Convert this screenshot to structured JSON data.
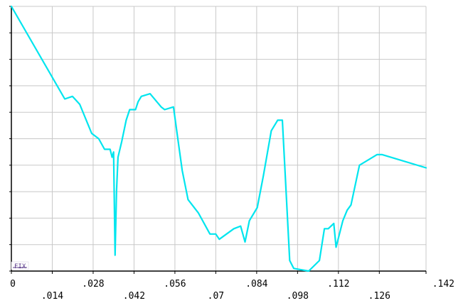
{
  "chart_data": {
    "type": "line",
    "title": "",
    "xlabel": "",
    "ylabel": "",
    "xlim": [
      0,
      0.142
    ],
    "ylim": [
      0,
      1
    ],
    "grid": true,
    "x_ticks": [
      0,
      0.014,
      0.028,
      0.042,
      0.056,
      0.07,
      0.084,
      0.098,
      0.112,
      0.126,
      0.142
    ],
    "x_tick_labels": [
      "0",
      ".014",
      ".028",
      ".042",
      ".056",
      ".07",
      ".084",
      ".098",
      ".112",
      ".126",
      ".142"
    ],
    "y_gridlines": 10,
    "y_tick_labels": [],
    "legend_label": "FIX",
    "colors": {
      "line": "#00e5ee",
      "grid": "#c8c8c8",
      "axis": "#000000",
      "legend_mark": "#5a3a8a"
    },
    "series": [
      {
        "x": [
          0,
          0.0183,
          0.0209,
          0.0234,
          0.0275,
          0.0299,
          0.0319,
          0.0338,
          0.0345,
          0.035,
          0.0355,
          0.036,
          0.0365,
          0.0378,
          0.0393,
          0.0405,
          0.0425,
          0.0434,
          0.0445,
          0.0475,
          0.0513,
          0.0525,
          0.0555,
          0.057,
          0.0585,
          0.0585,
          0.0605,
          0.064,
          0.068,
          0.07,
          0.0712,
          0.0762,
          0.0785,
          0.08,
          0.0815,
          0.0842,
          0.0863,
          0.089,
          0.0912,
          0.0928,
          0.0953,
          0.0967,
          0.1018,
          0.1055,
          0.1072,
          0.1085,
          0.1104,
          0.1112,
          0.1135,
          0.115,
          0.1163,
          0.1192,
          0.1252,
          0.127,
          0.142
        ],
        "values": [
          1.0,
          0.65,
          0.66,
          0.63,
          0.52,
          0.5,
          0.46,
          0.46,
          0.43,
          0.45,
          0.06,
          0.3,
          0.43,
          0.49,
          0.57,
          0.61,
          0.61,
          0.64,
          0.66,
          0.67,
          0.62,
          0.61,
          0.62,
          0.5,
          0.38,
          0.38,
          0.27,
          0.22,
          0.14,
          0.14,
          0.12,
          0.16,
          0.17,
          0.11,
          0.19,
          0.24,
          0.36,
          0.53,
          0.57,
          0.57,
          0.04,
          0.01,
          0.0,
          0.04,
          0.16,
          0.16,
          0.18,
          0.09,
          0.19,
          0.23,
          0.25,
          0.4,
          0.44,
          0.44,
          0.39
        ]
      }
    ]
  }
}
